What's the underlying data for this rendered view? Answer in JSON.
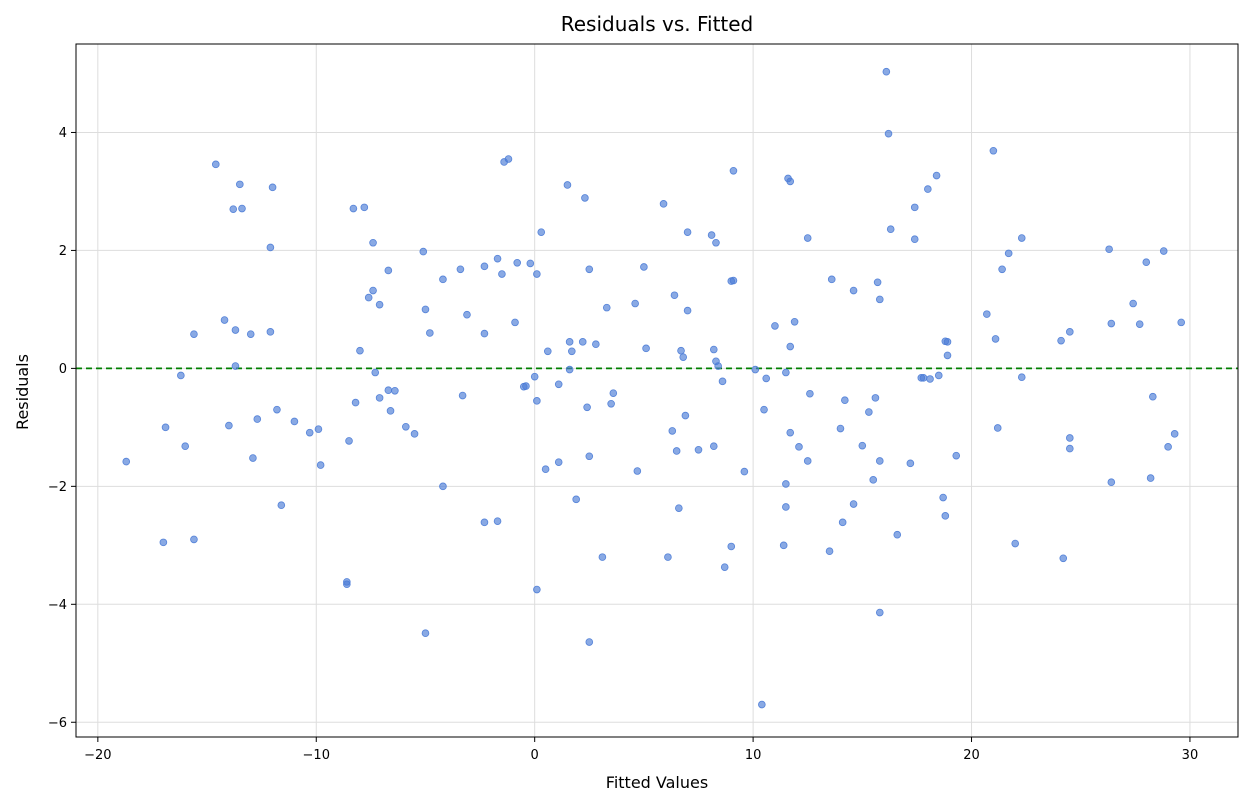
{
  "chart_data": {
    "type": "scatter",
    "title": "Residuals vs. Fitted",
    "xlabel": "Fitted Values",
    "ylabel": "Residuals",
    "xlim": [
      -21,
      32.2
    ],
    "ylim": [
      -6.25,
      5.5
    ],
    "xticks": [
      -20,
      -10,
      0,
      10,
      20,
      30
    ],
    "xtick_labels": [
      "−20",
      "−10",
      "0",
      "10",
      "20",
      "30"
    ],
    "yticks": [
      -6,
      -4,
      -2,
      0,
      2,
      4
    ],
    "ytick_labels": [
      "−6",
      "−4",
      "−2",
      "0",
      "2",
      "4"
    ],
    "grid": true,
    "reference_line": {
      "y": 0,
      "style": "dashed",
      "color": "#008000"
    },
    "point_color": "#4a7bd6",
    "points": [
      {
        "x": -18.7,
        "y": -1.58
      },
      {
        "x": -17.0,
        "y": -2.95
      },
      {
        "x": -16.9,
        "y": -1.0
      },
      {
        "x": -16.2,
        "y": -0.12
      },
      {
        "x": -16.0,
        "y": -1.32
      },
      {
        "x": -15.6,
        "y": 0.58
      },
      {
        "x": -15.6,
        "y": -2.9
      },
      {
        "x": -14.6,
        "y": 3.46
      },
      {
        "x": -14.2,
        "y": 0.82
      },
      {
        "x": -14.0,
        "y": -0.97
      },
      {
        "x": -13.8,
        "y": 2.7
      },
      {
        "x": -13.7,
        "y": 0.65
      },
      {
        "x": -13.7,
        "y": 0.04
      },
      {
        "x": -13.5,
        "y": 3.12
      },
      {
        "x": -13.4,
        "y": 2.71
      },
      {
        "x": -13.0,
        "y": 0.58
      },
      {
        "x": -12.9,
        "y": -1.52
      },
      {
        "x": -12.7,
        "y": -0.86
      },
      {
        "x": -12.1,
        "y": 0.62
      },
      {
        "x": -12.1,
        "y": 2.05
      },
      {
        "x": -12.0,
        "y": 3.07
      },
      {
        "x": -11.8,
        "y": -0.7
      },
      {
        "x": -11.6,
        "y": -2.32
      },
      {
        "x": -11.0,
        "y": -0.9
      },
      {
        "x": -10.3,
        "y": -1.09
      },
      {
        "x": -9.9,
        "y": -1.03
      },
      {
        "x": -9.8,
        "y": -1.64
      },
      {
        "x": -8.6,
        "y": -3.62
      },
      {
        "x": -8.6,
        "y": -3.66
      },
      {
        "x": -8.5,
        "y": -1.23
      },
      {
        "x": -8.3,
        "y": 2.71
      },
      {
        "x": -8.2,
        "y": -0.58
      },
      {
        "x": -8.0,
        "y": 0.3
      },
      {
        "x": -7.8,
        "y": 2.73
      },
      {
        "x": -7.6,
        "y": 1.2
      },
      {
        "x": -7.4,
        "y": 2.13
      },
      {
        "x": -7.4,
        "y": 1.32
      },
      {
        "x": -7.3,
        "y": -0.07
      },
      {
        "x": -7.1,
        "y": 1.08
      },
      {
        "x": -7.1,
        "y": -0.5
      },
      {
        "x": -6.7,
        "y": 1.66
      },
      {
        "x": -6.7,
        "y": -0.37
      },
      {
        "x": -6.6,
        "y": -0.72
      },
      {
        "x": -6.4,
        "y": -0.38
      },
      {
        "x": -5.9,
        "y": -0.99
      },
      {
        "x": -5.5,
        "y": -1.11
      },
      {
        "x": -5.1,
        "y": 1.98
      },
      {
        "x": -5.0,
        "y": 1.0
      },
      {
        "x": -5.0,
        "y": -4.49
      },
      {
        "x": -4.8,
        "y": 0.6
      },
      {
        "x": -4.2,
        "y": 1.51
      },
      {
        "x": -4.2,
        "y": -2.0
      },
      {
        "x": -3.4,
        "y": 1.68
      },
      {
        "x": -3.3,
        "y": -0.46
      },
      {
        "x": -3.1,
        "y": 0.91
      },
      {
        "x": -2.3,
        "y": 0.59
      },
      {
        "x": -2.3,
        "y": 1.73
      },
      {
        "x": -2.3,
        "y": -2.61
      },
      {
        "x": -1.7,
        "y": 1.86
      },
      {
        "x": -1.7,
        "y": -2.59
      },
      {
        "x": -1.5,
        "y": 1.6
      },
      {
        "x": -1.4,
        "y": 3.5
      },
      {
        "x": -1.2,
        "y": 3.55
      },
      {
        "x": -0.9,
        "y": 0.78
      },
      {
        "x": -0.8,
        "y": 1.79
      },
      {
        "x": -0.5,
        "y": -0.31
      },
      {
        "x": -0.4,
        "y": -0.3
      },
      {
        "x": -0.2,
        "y": 1.78
      },
      {
        "x": 0.0,
        "y": -0.14
      },
      {
        "x": 0.1,
        "y": 1.6
      },
      {
        "x": 0.1,
        "y": -0.55
      },
      {
        "x": 0.1,
        "y": -3.75
      },
      {
        "x": 0.3,
        "y": 2.31
      },
      {
        "x": 0.5,
        "y": -1.71
      },
      {
        "x": 0.6,
        "y": 0.29
      },
      {
        "x": 1.1,
        "y": -1.59
      },
      {
        "x": 1.1,
        "y": -0.27
      },
      {
        "x": 1.5,
        "y": 3.11
      },
      {
        "x": 1.6,
        "y": 0.45
      },
      {
        "x": 1.6,
        "y": -0.02
      },
      {
        "x": 1.7,
        "y": 0.29
      },
      {
        "x": 1.9,
        "y": -2.22
      },
      {
        "x": 2.2,
        "y": 0.45
      },
      {
        "x": 2.3,
        "y": 2.89
      },
      {
        "x": 2.4,
        "y": -0.66
      },
      {
        "x": 2.5,
        "y": 1.68
      },
      {
        "x": 2.5,
        "y": -1.49
      },
      {
        "x": 2.5,
        "y": -4.64
      },
      {
        "x": 2.8,
        "y": 0.41
      },
      {
        "x": 3.1,
        "y": -3.2
      },
      {
        "x": 3.3,
        "y": 1.03
      },
      {
        "x": 3.5,
        "y": -0.6
      },
      {
        "x": 3.6,
        "y": -0.42
      },
      {
        "x": 4.6,
        "y": 1.1
      },
      {
        "x": 4.7,
        "y": -1.74
      },
      {
        "x": 5.0,
        "y": 1.72
      },
      {
        "x": 5.1,
        "y": 0.34
      },
      {
        "x": 5.9,
        "y": 2.79
      },
      {
        "x": 6.1,
        "y": -3.2
      },
      {
        "x": 6.3,
        "y": -1.06
      },
      {
        "x": 6.4,
        "y": 1.24
      },
      {
        "x": 6.5,
        "y": -1.4
      },
      {
        "x": 6.6,
        "y": -2.37
      },
      {
        "x": 6.7,
        "y": 0.3
      },
      {
        "x": 6.8,
        "y": 0.19
      },
      {
        "x": 6.9,
        "y": -0.8
      },
      {
        "x": 7.0,
        "y": 0.98
      },
      {
        "x": 7.0,
        "y": 2.31
      },
      {
        "x": 7.5,
        "y": -1.38
      },
      {
        "x": 8.1,
        "y": 2.26
      },
      {
        "x": 8.2,
        "y": 0.32
      },
      {
        "x": 8.2,
        "y": -1.32
      },
      {
        "x": 8.3,
        "y": 0.12
      },
      {
        "x": 8.3,
        "y": 2.13
      },
      {
        "x": 8.4,
        "y": 0.04
      },
      {
        "x": 8.6,
        "y": -0.22
      },
      {
        "x": 8.7,
        "y": -3.37
      },
      {
        "x": 9.0,
        "y": -3.02
      },
      {
        "x": 9.0,
        "y": 1.48
      },
      {
        "x": 9.1,
        "y": 1.49
      },
      {
        "x": 9.1,
        "y": 3.35
      },
      {
        "x": 9.6,
        "y": -1.75
      },
      {
        "x": 10.1,
        "y": -0.02
      },
      {
        "x": 10.4,
        "y": -5.7
      },
      {
        "x": 10.5,
        "y": -0.7
      },
      {
        "x": 10.6,
        "y": -0.17
      },
      {
        "x": 11.0,
        "y": 0.72
      },
      {
        "x": 11.4,
        "y": -3.0
      },
      {
        "x": 11.5,
        "y": -0.07
      },
      {
        "x": 11.5,
        "y": -1.96
      },
      {
        "x": 11.5,
        "y": -2.35
      },
      {
        "x": 11.6,
        "y": 3.22
      },
      {
        "x": 11.7,
        "y": 3.17
      },
      {
        "x": 11.7,
        "y": 0.37
      },
      {
        "x": 11.7,
        "y": -1.09
      },
      {
        "x": 11.9,
        "y": 0.79
      },
      {
        "x": 12.1,
        "y": -1.33
      },
      {
        "x": 12.5,
        "y": 2.21
      },
      {
        "x": 12.5,
        "y": -1.57
      },
      {
        "x": 12.6,
        "y": -0.43
      },
      {
        "x": 13.5,
        "y": -3.1
      },
      {
        "x": 13.6,
        "y": 1.51
      },
      {
        "x": 14.0,
        "y": -1.02
      },
      {
        "x": 14.1,
        "y": -2.61
      },
      {
        "x": 14.2,
        "y": -0.54
      },
      {
        "x": 14.6,
        "y": 1.32
      },
      {
        "x": 14.6,
        "y": -2.3
      },
      {
        "x": 15.0,
        "y": -1.31
      },
      {
        "x": 15.3,
        "y": -0.74
      },
      {
        "x": 15.5,
        "y": -1.89
      },
      {
        "x": 15.6,
        "y": -0.5
      },
      {
        "x": 15.7,
        "y": 1.46
      },
      {
        "x": 15.8,
        "y": 1.17
      },
      {
        "x": 15.8,
        "y": -1.57
      },
      {
        "x": 15.8,
        "y": -4.14
      },
      {
        "x": 16.1,
        "y": 5.03
      },
      {
        "x": 16.2,
        "y": 3.98
      },
      {
        "x": 16.3,
        "y": 2.36
      },
      {
        "x": 16.6,
        "y": -2.82
      },
      {
        "x": 17.2,
        "y": -1.61
      },
      {
        "x": 17.4,
        "y": 2.73
      },
      {
        "x": 17.4,
        "y": 2.19
      },
      {
        "x": 17.7,
        "y": -0.16
      },
      {
        "x": 17.8,
        "y": -0.16
      },
      {
        "x": 18.0,
        "y": 3.04
      },
      {
        "x": 18.1,
        "y": -0.18
      },
      {
        "x": 18.4,
        "y": 3.27
      },
      {
        "x": 18.5,
        "y": -0.12
      },
      {
        "x": 18.7,
        "y": -2.19
      },
      {
        "x": 18.8,
        "y": 0.46
      },
      {
        "x": 18.8,
        "y": -2.5
      },
      {
        "x": 18.9,
        "y": 0.45
      },
      {
        "x": 18.9,
        "y": 0.22
      },
      {
        "x": 19.3,
        "y": -1.48
      },
      {
        "x": 20.7,
        "y": 0.92
      },
      {
        "x": 21.0,
        "y": 3.69
      },
      {
        "x": 21.1,
        "y": 0.5
      },
      {
        "x": 21.2,
        "y": -1.01
      },
      {
        "x": 21.4,
        "y": 1.68
      },
      {
        "x": 21.7,
        "y": 1.95
      },
      {
        "x": 22.0,
        "y": -2.97
      },
      {
        "x": 22.3,
        "y": -0.15
      },
      {
        "x": 22.3,
        "y": 2.21
      },
      {
        "x": 24.1,
        "y": 0.47
      },
      {
        "x": 24.2,
        "y": -3.22
      },
      {
        "x": 24.5,
        "y": 0.62
      },
      {
        "x": 24.5,
        "y": -1.18
      },
      {
        "x": 24.5,
        "y": -1.36
      },
      {
        "x": 26.3,
        "y": 2.02
      },
      {
        "x": 26.4,
        "y": 0.76
      },
      {
        "x": 26.4,
        "y": -1.93
      },
      {
        "x": 27.4,
        "y": 1.1
      },
      {
        "x": 27.7,
        "y": 0.75
      },
      {
        "x": 28.0,
        "y": 1.8
      },
      {
        "x": 28.2,
        "y": -1.86
      },
      {
        "x": 28.3,
        "y": -0.48
      },
      {
        "x": 28.8,
        "y": 1.99
      },
      {
        "x": 29.0,
        "y": -1.33
      },
      {
        "x": 29.3,
        "y": -1.11
      },
      {
        "x": 29.6,
        "y": 0.78
      }
    ]
  }
}
